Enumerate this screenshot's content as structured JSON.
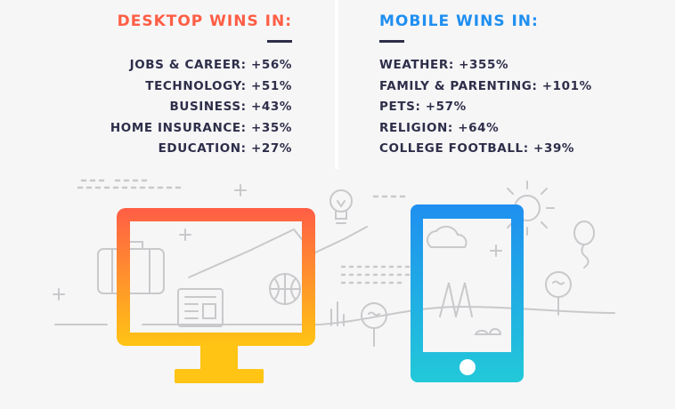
{
  "desktop": {
    "heading": "DESKTOP WINS IN:",
    "color": "#ff5e45",
    "items": [
      "JOBS & CAREER: +56%",
      "TECHNOLOGY: +51%",
      "BUSINESS: +43%",
      "HOME INSURANCE: +35%",
      "EDUCATION: +27%"
    ]
  },
  "mobile": {
    "heading": "MOBILE WINS IN:",
    "color": "#1f8ff0",
    "items": [
      "WEATHER: +355%",
      "FAMILY & PARENTING: +101%",
      "PETS: +57%",
      "RELIGION: +64%",
      "COLLEGE FOOTBALL: +39%"
    ]
  },
  "illustration": {
    "desktop_gradient": [
      "#ff5e45",
      "#ffc414"
    ],
    "mobile_gradient": [
      "#1f8ff0",
      "#22c9d8"
    ],
    "line_color": "#c9c9cc",
    "icons": [
      "suitcase-icon",
      "newspaper-icon",
      "basketball-icon",
      "lightbulb-icon",
      "sun-icon",
      "cloud-icon",
      "balloon-icon",
      "golf-ball-icon"
    ]
  }
}
